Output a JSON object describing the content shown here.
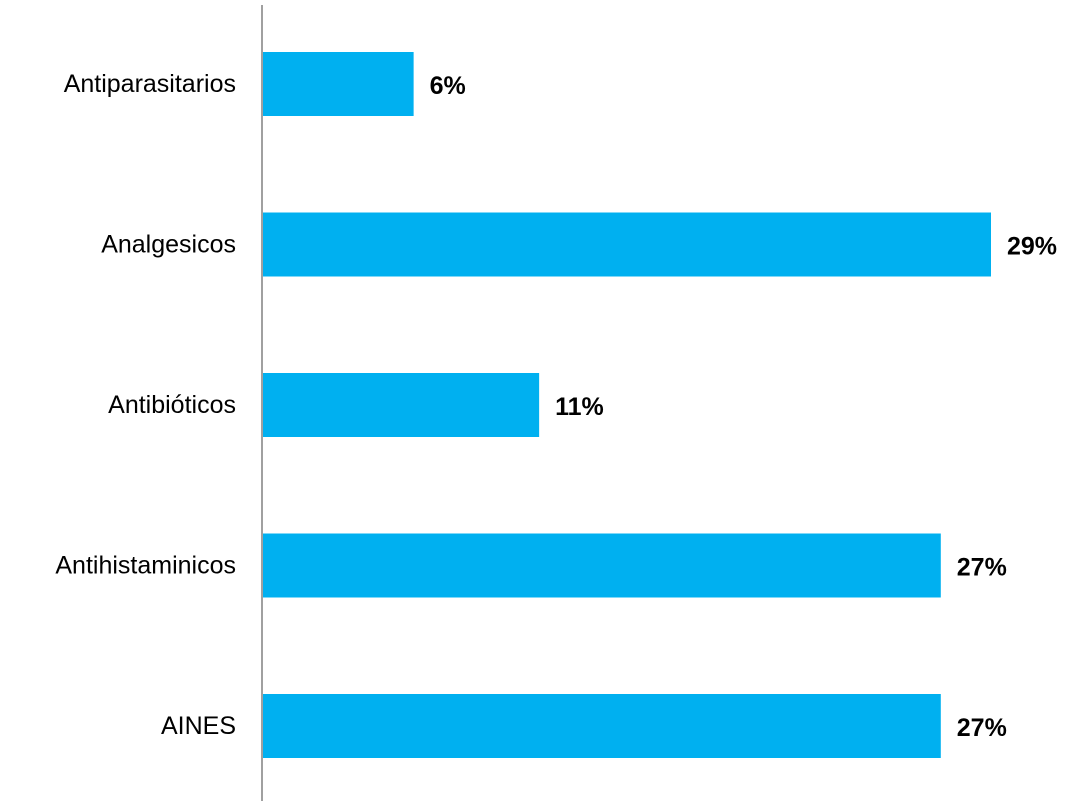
{
  "chart_data": {
    "type": "bar",
    "orientation": "horizontal",
    "categories": [
      "Antiparasitarios",
      "Analgesicos",
      "Antibióticos",
      "Antihistaminicos",
      "AINES"
    ],
    "values": [
      6,
      29,
      11,
      27,
      27
    ],
    "value_labels": [
      "6%",
      "29%",
      "11%",
      "27%",
      "27%"
    ],
    "unit": "%",
    "title": "",
    "xlabel": "",
    "ylabel": "",
    "grid": false,
    "legend": "none",
    "bar_color": "#00B0F0"
  }
}
